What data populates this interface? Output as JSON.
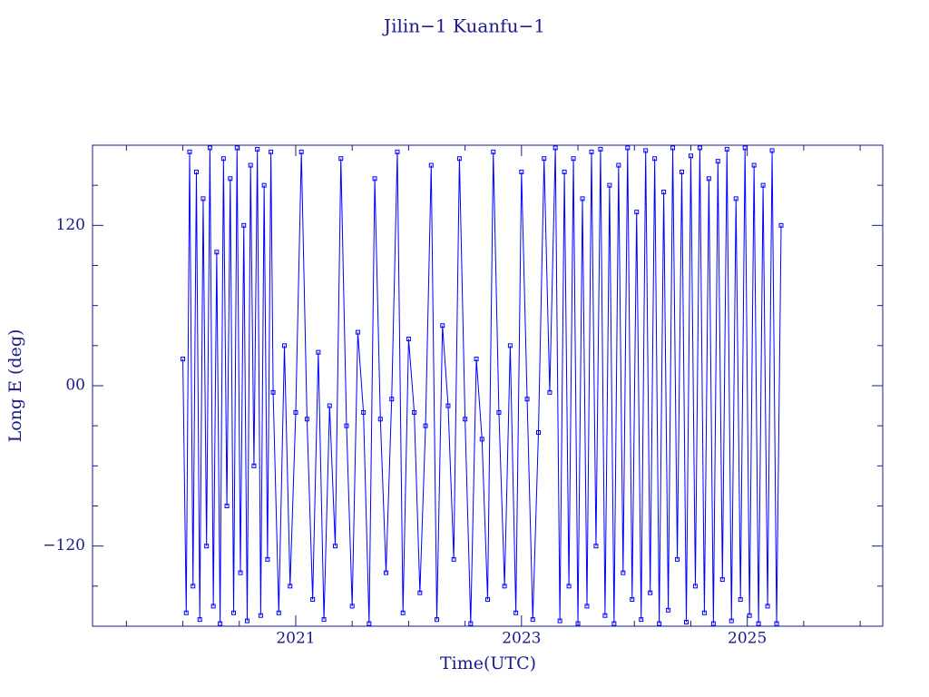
{
  "chart_data": {
    "type": "line",
    "title": "Jilin−1 Kuanfu−1",
    "x_label": "Time(UTC)",
    "y_label": "Long E (deg)",
    "xlim": [
      2019.2,
      2026.2
    ],
    "xticks": [
      2021,
      2023,
      2025
    ],
    "xminorticks": [
      2019.5,
      2020,
      2020.5,
      2021.5,
      2022,
      2022.5,
      2023.5,
      2024,
      2024.5,
      2025.5,
      2026
    ],
    "ylim": [
      -180,
      180
    ],
    "yticks": [
      {
        "value": -120,
        "label": "−120"
      },
      {
        "value": 0,
        "label": "00"
      },
      120
    ],
    "yminorticks": [
      -150,
      -90,
      -60,
      -30,
      30,
      60,
      90,
      150
    ],
    "x": [
      2020.0,
      2020.03,
      2020.06,
      2020.09,
      2020.12,
      2020.15,
      2020.18,
      2020.21,
      2020.24,
      2020.27,
      2020.3,
      2020.33,
      2020.36,
      2020.39,
      2020.42,
      2020.45,
      2020.48,
      2020.51,
      2020.54,
      2020.57,
      2020.6,
      2020.63,
      2020.66,
      2020.69,
      2020.72,
      2020.75,
      2020.78,
      2020.8,
      2020.85,
      2020.9,
      2020.95,
      2021.0,
      2021.05,
      2021.1,
      2021.15,
      2021.2,
      2021.25,
      2021.3,
      2021.35,
      2021.4,
      2021.45,
      2021.5,
      2021.55,
      2021.6,
      2021.65,
      2021.7,
      2021.75,
      2021.8,
      2021.85,
      2021.9,
      2021.95,
      2022.0,
      2022.05,
      2022.1,
      2022.15,
      2022.2,
      2022.25,
      2022.3,
      2022.35,
      2022.4,
      2022.45,
      2022.5,
      2022.55,
      2022.6,
      2022.65,
      2022.7,
      2022.75,
      2022.8,
      2022.85,
      2022.9,
      2022.95,
      2023.0,
      2023.05,
      2023.1,
      2023.15,
      2023.2,
      2023.25,
      2023.3,
      2023.34,
      2023.38,
      2023.42,
      2023.46,
      2023.5,
      2023.54,
      2023.58,
      2023.62,
      2023.66,
      2023.7,
      2023.74,
      2023.78,
      2023.82,
      2023.86,
      2023.9,
      2023.94,
      2023.98,
      2024.02,
      2024.06,
      2024.1,
      2024.14,
      2024.18,
      2024.22,
      2024.26,
      2024.3,
      2024.34,
      2024.38,
      2024.42,
      2024.46,
      2024.5,
      2024.54,
      2024.58,
      2024.62,
      2024.66,
      2024.7,
      2024.74,
      2024.78,
      2024.82,
      2024.86,
      2024.9,
      2024.94,
      2024.98,
      2025.02,
      2025.06,
      2025.1,
      2025.14,
      2025.18,
      2025.22,
      2025.26,
      2025.3
    ],
    "series": [
      {
        "color": "#0000ff",
        "values": [
          20,
          -170,
          175,
          -150,
          160,
          -175,
          140,
          -120,
          178,
          -165,
          100,
          -178,
          170,
          -90,
          155,
          -170,
          178,
          -140,
          120,
          -176,
          165,
          -60,
          177,
          -172,
          150,
          -130,
          175,
          -5,
          -170,
          30,
          -150,
          -20,
          175,
          -25,
          -160,
          25,
          -175,
          -15,
          -120,
          170,
          -30,
          -165,
          40,
          -20,
          -178,
          155,
          -25,
          -140,
          -10,
          175,
          -170,
          35,
          -20,
          -155,
          -30,
          165,
          -175,
          45,
          -15,
          -130,
          170,
          -25,
          -178,
          20,
          -40,
          -160,
          175,
          -20,
          -150,
          30,
          -170,
          160,
          -10,
          -175,
          -35,
          170,
          -5,
          178,
          -176,
          160,
          -150,
          170,
          -178,
          140,
          -165,
          175,
          -120,
          177,
          -172,
          150,
          -178,
          165,
          -140,
          178,
          -160,
          130,
          -175,
          176,
          -155,
          170,
          -178,
          145,
          -168,
          178,
          -130,
          160,
          -177,
          172,
          -150,
          178,
          -170,
          155,
          -178,
          168,
          -145,
          177,
          -176,
          140,
          -160,
          178,
          -172,
          165,
          -178,
          150,
          -165,
          176,
          -178,
          120
        ]
      }
    ]
  }
}
